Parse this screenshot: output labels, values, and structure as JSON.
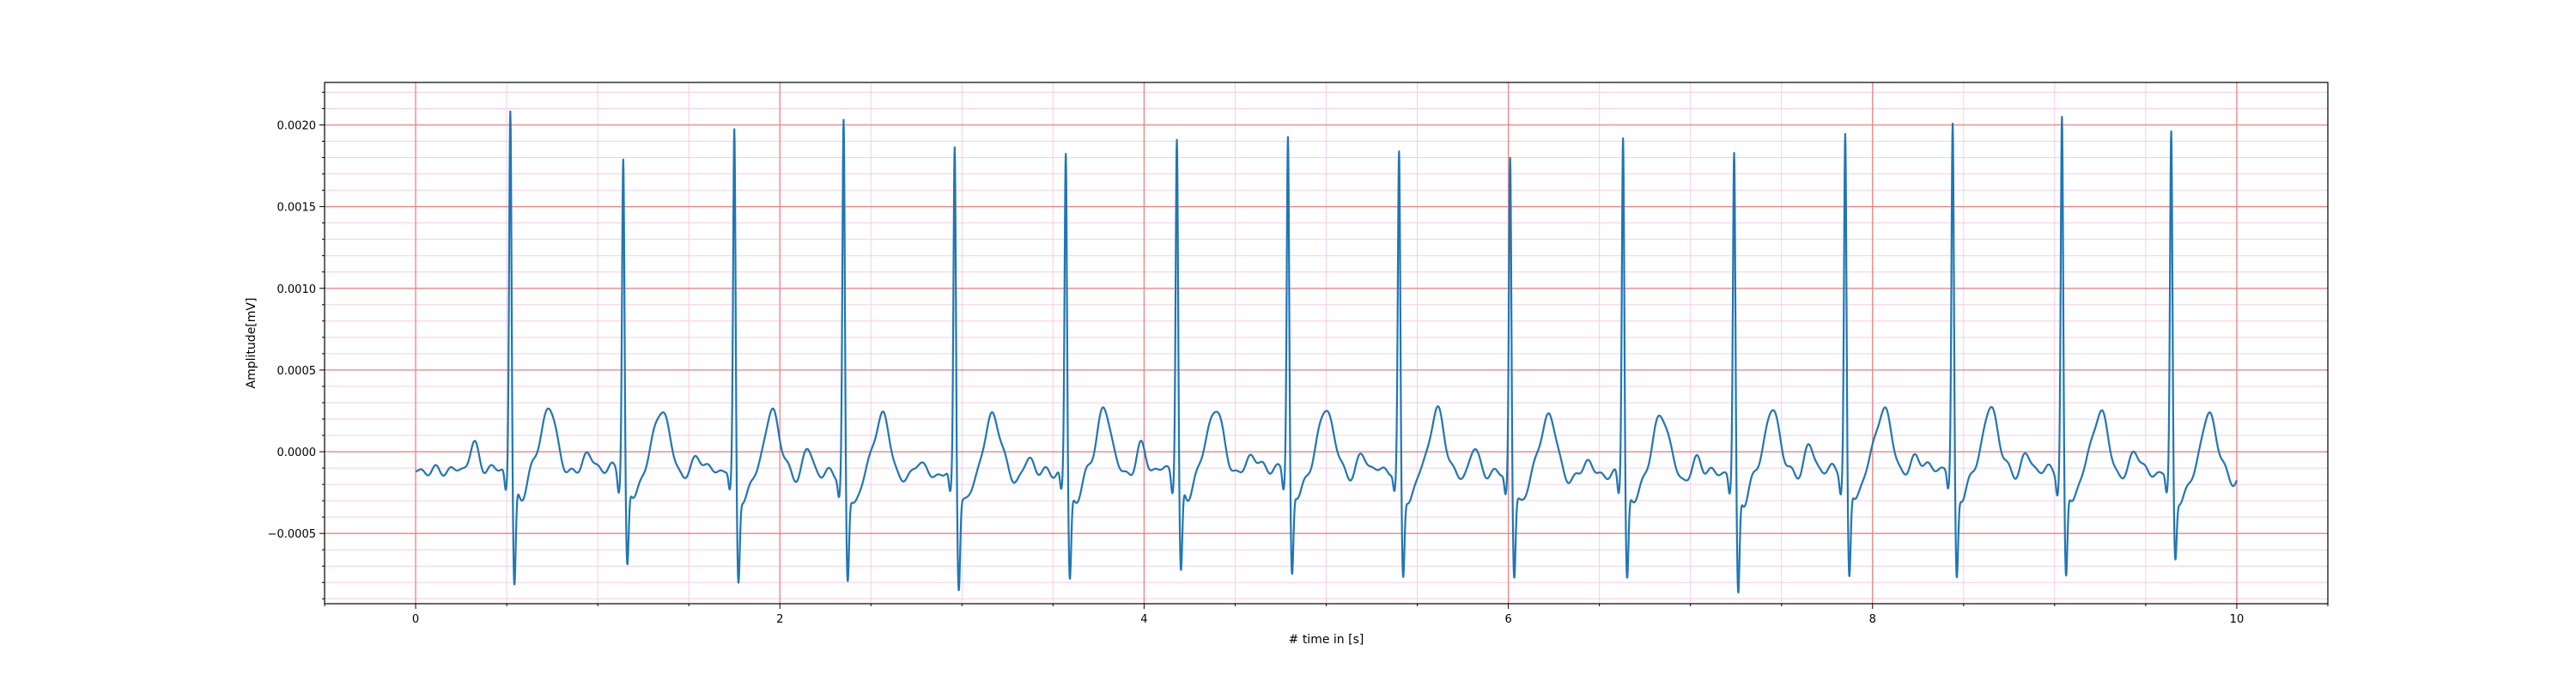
{
  "chart_data": {
    "type": "line",
    "title": "",
    "xlabel": "# time in [s]",
    "ylabel": "Amplitude[mV]",
    "xlim": [
      -0.5,
      10.5
    ],
    "ylim": [
      -0.00093,
      0.00226
    ],
    "xticks": [
      0,
      2,
      4,
      6,
      8,
      10
    ],
    "xtick_labels": [
      "0",
      "2",
      "4",
      "6",
      "8",
      "10"
    ],
    "yticks": [
      -0.0005,
      0.0,
      0.0005,
      0.001,
      0.0015,
      0.002
    ],
    "ytick_labels": [
      "−0.0005",
      "0.0000",
      "0.0005",
      "0.0010",
      "0.0015",
      "0.0020"
    ],
    "grid": true,
    "major_grid_color": "#f08080",
    "minor_grid_color": "#f6cce8",
    "line_color": "#1f77b4",
    "series": [
      {
        "beats": [
          {
            "t": 0.52,
            "r": 0.00212,
            "s": -0.00076
          },
          {
            "t": 1.14,
            "r": 0.00182,
            "s": -0.00063
          },
          {
            "t": 1.75,
            "r": 0.00199,
            "s": -0.00069
          },
          {
            "t": 2.35,
            "r": 0.00207,
            "s": -0.00069
          },
          {
            "t": 2.96,
            "r": 0.00194,
            "s": -0.00071
          },
          {
            "t": 3.57,
            "r": 0.00187,
            "s": -0.00068
          },
          {
            "t": 4.18,
            "r": 0.00195,
            "s": -0.00068
          },
          {
            "t": 4.79,
            "r": 0.00195,
            "s": -0.00067
          },
          {
            "t": 5.4,
            "r": 0.00184,
            "s": -0.00067
          },
          {
            "t": 6.01,
            "r": 0.00186,
            "s": -0.00066
          },
          {
            "t": 6.63,
            "r": 0.00201,
            "s": -0.00066
          },
          {
            "t": 7.24,
            "r": 0.00186,
            "s": -0.00078
          },
          {
            "t": 7.85,
            "r": 0.00196,
            "s": -0.0007
          },
          {
            "t": 8.44,
            "r": 0.00201,
            "s": -0.00069
          },
          {
            "t": 9.04,
            "r": 0.00207,
            "s": -0.00069
          },
          {
            "t": 9.64,
            "r": 0.002,
            "s": -0.00053
          }
        ],
        "t_start": 0.0,
        "t_end": 10.0
      }
    ]
  }
}
